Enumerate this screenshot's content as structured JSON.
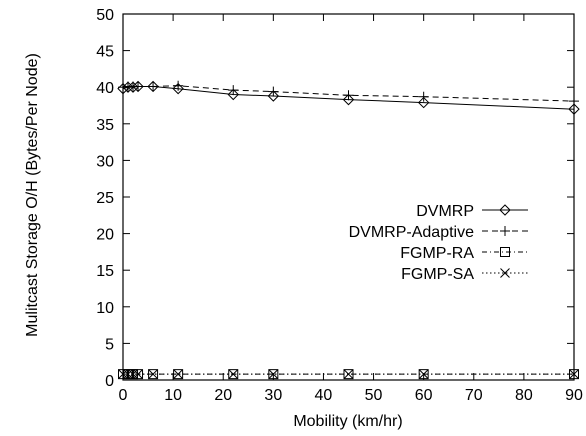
{
  "chart_data": {
    "type": "line",
    "title": "",
    "xlabel": "Mobility (km/hr)",
    "ylabel": "Mulitcast Storage O/H (Bytes/Per Node)",
    "xlim": [
      0,
      90
    ],
    "ylim": [
      0,
      50
    ],
    "xticks": [
      0,
      10,
      20,
      30,
      40,
      50,
      60,
      70,
      80,
      90
    ],
    "yticks": [
      0,
      5,
      10,
      15,
      20,
      25,
      30,
      35,
      40,
      45,
      50
    ],
    "grid": false,
    "legend_position": "center-right",
    "series": [
      {
        "name": "DVMRP",
        "marker": "diamond",
        "line_style": "solid",
        "x": [
          0,
          1,
          2,
          3,
          6,
          11,
          22,
          30,
          45,
          60,
          90
        ],
        "y": [
          39.8,
          40.0,
          40.0,
          40.1,
          40.1,
          39.8,
          39.0,
          38.8,
          38.3,
          37.9,
          37.0
        ]
      },
      {
        "name": "DVMRP-Adaptive",
        "marker": "plus",
        "line_style": "dashed",
        "x": [
          0,
          1,
          2,
          3,
          6,
          11,
          22,
          30,
          45,
          60,
          90
        ],
        "y": [
          40.0,
          40.1,
          40.1,
          40.1,
          40.1,
          40.2,
          39.6,
          39.4,
          38.9,
          38.7,
          38.1
        ]
      },
      {
        "name": "FGMP-RA",
        "marker": "square",
        "line_style": "dash-dot",
        "x": [
          0,
          1,
          2,
          3,
          6,
          11,
          22,
          30,
          45,
          60,
          90
        ],
        "y": [
          0.8,
          0.8,
          0.8,
          0.8,
          0.8,
          0.8,
          0.8,
          0.8,
          0.8,
          0.8,
          0.8
        ]
      },
      {
        "name": "FGMP-SA",
        "marker": "x",
        "line_style": "dotted",
        "x": [
          0,
          1,
          2,
          3,
          6,
          11,
          22,
          30,
          45,
          60,
          90
        ],
        "y": [
          0.8,
          0.8,
          0.8,
          0.8,
          0.8,
          0.8,
          0.8,
          0.8,
          0.8,
          0.8,
          0.8
        ]
      }
    ]
  }
}
